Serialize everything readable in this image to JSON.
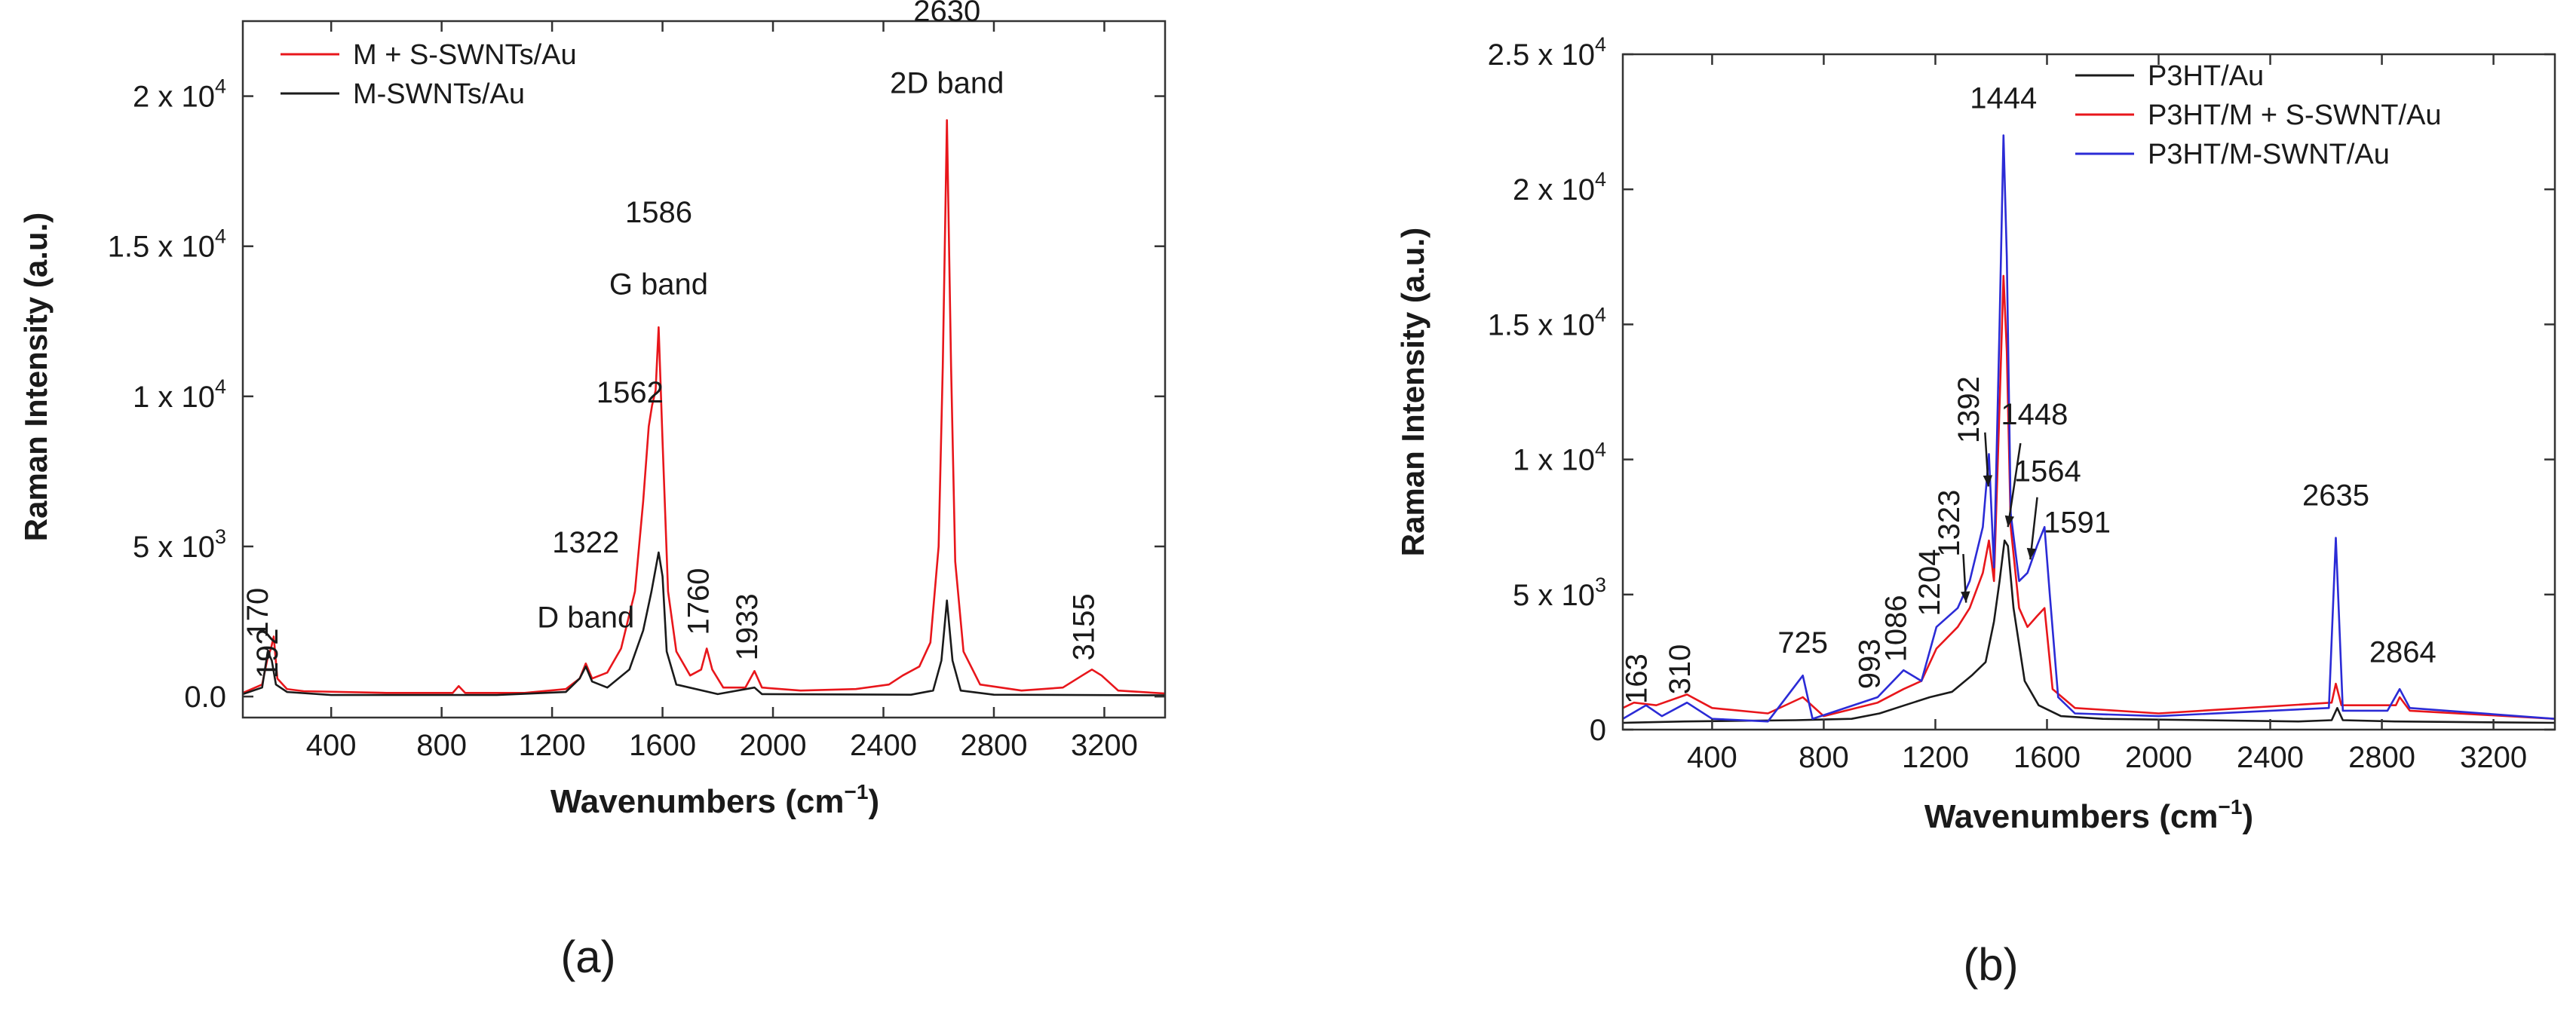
{
  "chart_data": [
    {
      "panel": "(a)",
      "type": "line",
      "xlabel": "Wavenumbers (cm",
      "xlabel_sup": "−1",
      "xlabel_close": ")",
      "ylabel": "Raman Intensity (a.u.)",
      "xlim": [
        80,
        3420
      ],
      "ylim": [
        -700,
        22500
      ],
      "xticks": [
        400,
        800,
        1200,
        1600,
        2000,
        2400,
        2800,
        3200
      ],
      "xtick_labels": [
        "400",
        "800",
        "1200",
        "1600",
        "2000",
        "2400",
        "2800",
        "3200"
      ],
      "yticks": [
        0,
        5000,
        10000,
        15000,
        20000
      ],
      "ytick_labels": [
        {
          "main": "0.0",
          "sup": ""
        },
        {
          "main": "5 x 10",
          "sup": "3"
        },
        {
          "main": "1 x 10",
          "sup": "4"
        },
        {
          "main": "1.5 x 10",
          "sup": "4"
        },
        {
          "main": "2 x 10",
          "sup": "4"
        }
      ],
      "legend_position": "top-left",
      "series": [
        {
          "name": "M + S-SWNTs/Au",
          "color": "#e8161b",
          "points": [
            [
              80,
              120
            ],
            [
              150,
              400
            ],
            [
              170,
              1300
            ],
            [
              182,
              1600
            ],
            [
              192,
              2000
            ],
            [
              205,
              600
            ],
            [
              240,
              250
            ],
            [
              300,
              180
            ],
            [
              600,
              120
            ],
            [
              840,
              120
            ],
            [
              862,
              350
            ],
            [
              885,
              120
            ],
            [
              1100,
              120
            ],
            [
              1250,
              250
            ],
            [
              1300,
              600
            ],
            [
              1322,
              1100
            ],
            [
              1345,
              600
            ],
            [
              1400,
              800
            ],
            [
              1450,
              1600
            ],
            [
              1500,
              3500
            ],
            [
              1530,
              6500
            ],
            [
              1550,
              9000
            ],
            [
              1562,
              9700
            ],
            [
              1575,
              10200
            ],
            [
              1586,
              12300
            ],
            [
              1600,
              8500
            ],
            [
              1620,
              3500
            ],
            [
              1650,
              1500
            ],
            [
              1700,
              700
            ],
            [
              1740,
              900
            ],
            [
              1760,
              1600
            ],
            [
              1780,
              900
            ],
            [
              1820,
              300
            ],
            [
              1900,
              300
            ],
            [
              1933,
              850
            ],
            [
              1960,
              300
            ],
            [
              2100,
              200
            ],
            [
              2300,
              250
            ],
            [
              2420,
              400
            ],
            [
              2470,
              700
            ],
            [
              2530,
              1000
            ],
            [
              2570,
              1800
            ],
            [
              2600,
              5000
            ],
            [
              2615,
              11000
            ],
            [
              2630,
              19200
            ],
            [
              2645,
              11000
            ],
            [
              2660,
              4500
            ],
            [
              2690,
              1500
            ],
            [
              2750,
              400
            ],
            [
              2900,
              200
            ],
            [
              3050,
              300
            ],
            [
              3120,
              700
            ],
            [
              3155,
              900
            ],
            [
              3190,
              700
            ],
            [
              3250,
              200
            ],
            [
              3420,
              100
            ]
          ]
        },
        {
          "name": "M-SWNTs/Au",
          "color": "#1a1a1a",
          "points": [
            [
              80,
              80
            ],
            [
              150,
              300
            ],
            [
              170,
              1500
            ],
            [
              185,
              1200
            ],
            [
              200,
              400
            ],
            [
              240,
              150
            ],
            [
              400,
              50
            ],
            [
              1000,
              50
            ],
            [
              1250,
              150
            ],
            [
              1300,
              600
            ],
            [
              1322,
              1000
            ],
            [
              1345,
              500
            ],
            [
              1400,
              300
            ],
            [
              1480,
              900
            ],
            [
              1530,
              2200
            ],
            [
              1560,
              3500
            ],
            [
              1586,
              4800
            ],
            [
              1600,
              4000
            ],
            [
              1615,
              1500
            ],
            [
              1650,
              400
            ],
            [
              1800,
              80
            ],
            [
              1933,
              300
            ],
            [
              1960,
              80
            ],
            [
              2500,
              60
            ],
            [
              2580,
              200
            ],
            [
              2610,
              1200
            ],
            [
              2630,
              3200
            ],
            [
              2650,
              1200
            ],
            [
              2680,
              200
            ],
            [
              2800,
              60
            ],
            [
              3420,
              40
            ]
          ]
        }
      ],
      "annotations": [
        {
          "text": "170",
          "x": 170,
          "y": 1950,
          "rotate": true,
          "color": "#1a1a1a"
        },
        {
          "text": "192",
          "x": 205,
          "y": 600,
          "rotate": true,
          "color": "#e8161b"
        },
        {
          "text": "1322",
          "x": 1322,
          "y": 4800,
          "rotate": false,
          "color": "#1a1a1a"
        },
        {
          "text": "D band",
          "x": 1322,
          "y": 2300,
          "rotate": false,
          "color": "#1a1a1a"
        },
        {
          "text": "1562",
          "x": 1482,
          "y": 9800,
          "rotate": false,
          "color": "#1a1a1a"
        },
        {
          "text": "1586",
          "x": 1586,
          "y": 15800,
          "rotate": false,
          "color": "#1a1a1a"
        },
        {
          "text": "G band",
          "x": 1586,
          "y": 13400,
          "rotate": false,
          "color": "#1a1a1a"
        },
        {
          "text": "1760",
          "x": 1766,
          "y": 2050,
          "rotate": true,
          "color": "#1a1a1a"
        },
        {
          "text": "1933",
          "x": 1942,
          "y": 1200,
          "rotate": true,
          "color": "#1a1a1a"
        },
        {
          "text": "2630",
          "x": 2630,
          "y": 22500,
          "rotate": false,
          "color": "#1a1a1a"
        },
        {
          "text": "2D band",
          "x": 2630,
          "y": 20100,
          "rotate": false,
          "color": "#1a1a1a"
        },
        {
          "text": "3155",
          "x": 3162,
          "y": 1200,
          "rotate": true,
          "color": "#1a1a1a"
        }
      ]
    },
    {
      "panel": "(b)",
      "type": "line",
      "xlabel": "Wavenumbers (cm",
      "xlabel_sup": "−1",
      "xlabel_close": ")",
      "ylabel": "Raman Intensity (a.u.)",
      "xlim": [
        80,
        3420
      ],
      "ylim": [
        0,
        25000
      ],
      "xticks": [
        400,
        800,
        1200,
        1600,
        2000,
        2400,
        2800,
        3200
      ],
      "xtick_labels": [
        "400",
        "800",
        "1200",
        "1600",
        "2000",
        "2400",
        "2800",
        "3200"
      ],
      "yticks": [
        0,
        5000,
        10000,
        15000,
        20000,
        25000
      ],
      "ytick_labels": [
        {
          "main": "0",
          "sup": ""
        },
        {
          "main": "5 x 10",
          "sup": "3"
        },
        {
          "main": "1 x 10",
          "sup": "4"
        },
        {
          "main": "1.5 x 10",
          "sup": "4"
        },
        {
          "main": "2 x 10",
          "sup": "4"
        },
        {
          "main": "2.5 x 10",
          "sup": "4"
        }
      ],
      "legend_position": "top-right",
      "series": [
        {
          "name": "P3HT/Au",
          "color": "#1a1a1a",
          "points": [
            [
              80,
              250
            ],
            [
              300,
              300
            ],
            [
              700,
              350
            ],
            [
              900,
              400
            ],
            [
              1000,
              600
            ],
            [
              1090,
              900
            ],
            [
              1180,
              1200
            ],
            [
              1260,
              1400
            ],
            [
              1330,
              2000
            ],
            [
              1380,
              2500
            ],
            [
              1410,
              4000
            ],
            [
              1430,
              5500
            ],
            [
              1448,
              7000
            ],
            [
              1460,
              6800
            ],
            [
              1480,
              4500
            ],
            [
              1520,
              1800
            ],
            [
              1570,
              900
            ],
            [
              1650,
              500
            ],
            [
              1800,
              400
            ],
            [
              2500,
              300
            ],
            [
              2620,
              350
            ],
            [
              2640,
              800
            ],
            [
              2660,
              350
            ],
            [
              2850,
              300
            ],
            [
              3420,
              250
            ]
          ]
        },
        {
          "name": "P3HT/M + S-SWNT/Au",
          "color": "#e8161b",
          "points": [
            [
              80,
              800
            ],
            [
              120,
              1000
            ],
            [
              200,
              900
            ],
            [
              310,
              1300
            ],
            [
              400,
              800
            ],
            [
              600,
              600
            ],
            [
              725,
              1200
            ],
            [
              800,
              500
            ],
            [
              993,
              1000
            ],
            [
              1086,
              1500
            ],
            [
              1150,
              1800
            ],
            [
              1204,
              3000
            ],
            [
              1280,
              3800
            ],
            [
              1323,
              4500
            ],
            [
              1370,
              5800
            ],
            [
              1392,
              7000
            ],
            [
              1410,
              5500
            ],
            [
              1430,
              12000
            ],
            [
              1444,
              16800
            ],
            [
              1456,
              14000
            ],
            [
              1470,
              7500
            ],
            [
              1500,
              4500
            ],
            [
              1530,
              3800
            ],
            [
              1564,
              4200
            ],
            [
              1591,
              4500
            ],
            [
              1620,
              1500
            ],
            [
              1700,
              800
            ],
            [
              2000,
              600
            ],
            [
              2620,
              1000
            ],
            [
              2635,
              1700
            ],
            [
              2655,
              900
            ],
            [
              2850,
              900
            ],
            [
              2864,
              1200
            ],
            [
              2900,
              700
            ],
            [
              3420,
              400
            ]
          ]
        },
        {
          "name": "P3HT/M-SWNT/Au",
          "color": "#2b2bd6",
          "points": [
            [
              80,
              400
            ],
            [
              163,
              900
            ],
            [
              220,
              500
            ],
            [
              310,
              1000
            ],
            [
              400,
              400
            ],
            [
              600,
              300
            ],
            [
              725,
              2000
            ],
            [
              760,
              400
            ],
            [
              993,
              1200
            ],
            [
              1086,
              2200
            ],
            [
              1150,
              1800
            ],
            [
              1204,
              3800
            ],
            [
              1280,
              4500
            ],
            [
              1323,
              5500
            ],
            [
              1370,
              7500
            ],
            [
              1392,
              10200
            ],
            [
              1410,
              6000
            ],
            [
              1430,
              15000
            ],
            [
              1444,
              22000
            ],
            [
              1456,
              17500
            ],
            [
              1470,
              8000
            ],
            [
              1500,
              5500
            ],
            [
              1530,
              5800
            ],
            [
              1564,
              6800
            ],
            [
              1591,
              7500
            ],
            [
              1610,
              5000
            ],
            [
              1640,
              1200
            ],
            [
              1700,
              600
            ],
            [
              2000,
              500
            ],
            [
              2610,
              800
            ],
            [
              2635,
              7100
            ],
            [
              2660,
              700
            ],
            [
              2820,
              700
            ],
            [
              2864,
              1500
            ],
            [
              2900,
              800
            ],
            [
              3420,
              400
            ]
          ]
        }
      ],
      "annotations": [
        {
          "text": "163",
          "x": 165,
          "y": 950,
          "rotate": true,
          "color": "#1a1a1a"
        },
        {
          "text": "310",
          "x": 320,
          "y": 1300,
          "rotate": true,
          "color": "#1a1a1a"
        },
        {
          "text": "725",
          "x": 725,
          "y": 2850,
          "rotate": false,
          "color": "#1a1a1a"
        },
        {
          "text": "993",
          "x": 1000,
          "y": 1500,
          "rotate": true,
          "color": "#1a1a1a"
        },
        {
          "text": "1086",
          "x": 1095,
          "y": 2500,
          "rotate": true,
          "color": "#1a1a1a"
        },
        {
          "text": "1204",
          "x": 1215,
          "y": 4200,
          "rotate": true,
          "color": "#1a1a1a"
        },
        {
          "text": "1323",
          "x": 1285,
          "y": 6400,
          "rotate": true,
          "color": "#1a1a1a"
        },
        {
          "text": "1392",
          "x": 1355,
          "y": 10600,
          "rotate": true,
          "color": "#1a1a1a"
        },
        {
          "text": "1444",
          "x": 1444,
          "y": 23000,
          "rotate": false,
          "color": "#1a1a1a"
        },
        {
          "text": "1448",
          "x": 1555,
          "y": 11300,
          "rotate": false,
          "color": "#1a1a1a"
        },
        {
          "text": "1564",
          "x": 1602,
          "y": 9200,
          "rotate": false,
          "color": "#1a1a1a"
        },
        {
          "text": "1591",
          "x": 1708,
          "y": 7300,
          "rotate": false,
          "color": "#1a1a1a"
        },
        {
          "text": "2635",
          "x": 2635,
          "y": 8300,
          "rotate": false,
          "color": "#1a1a1a"
        },
        {
          "text": "2864",
          "x": 2875,
          "y": 2500,
          "rotate": false,
          "color": "#1a1a1a"
        }
      ],
      "arrows": [
        {
          "from": [
            1300,
            6500
          ],
          "to": [
            1310,
            4700
          ]
        },
        {
          "from": [
            1378,
            11000
          ],
          "to": [
            1390,
            9000
          ]
        },
        {
          "from": [
            1505,
            10600
          ],
          "to": [
            1460,
            7500
          ]
        },
        {
          "from": [
            1565,
            8600
          ],
          "to": [
            1540,
            6300
          ]
        }
      ]
    }
  ],
  "captions": [
    "(a)",
    "(b)"
  ]
}
